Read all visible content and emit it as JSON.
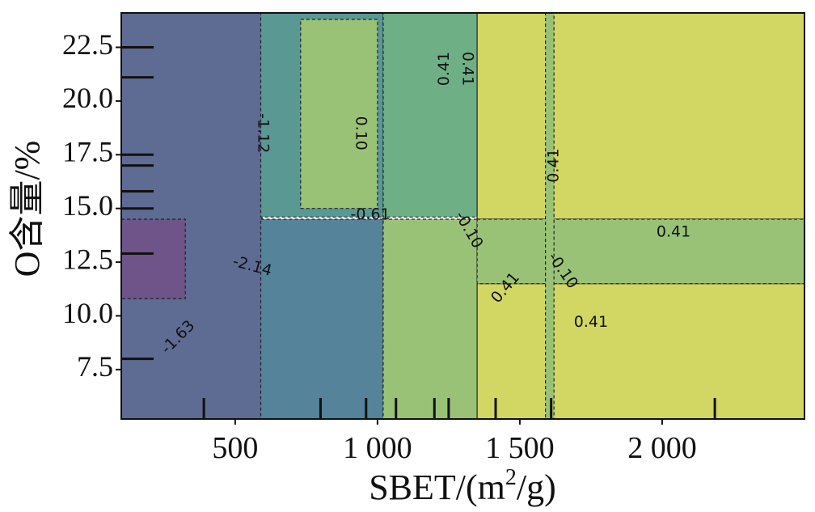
{
  "chart_data": {
    "type": "heatmap",
    "subtype": "filled-contour",
    "xlabel": "SBET/(m²/g)",
    "xlabel_base": "SBET/(m",
    "xlabel_sup": "2",
    "xlabel_tail": "/g)",
    "ylabel": "O含量/%",
    "xlim": [
      100,
      2500
    ],
    "ylim": [
      5.2,
      24.1
    ],
    "grid": false,
    "xticks": [
      {
        "value": 500,
        "label": "500"
      },
      {
        "value": 1000,
        "label": "1 000"
      },
      {
        "value": 1500,
        "label": "1 500"
      },
      {
        "value": 2000,
        "label": "2 000"
      }
    ],
    "yticks": [
      {
        "value": 7.5,
        "label": "7.5"
      },
      {
        "value": 10.0,
        "label": "10.0"
      },
      {
        "value": 12.5,
        "label": "12.5"
      },
      {
        "value": 15.0,
        "label": "15.0"
      },
      {
        "value": 17.5,
        "label": "17.5"
      },
      {
        "value": 20.0,
        "label": "20.0"
      },
      {
        "value": 22.5,
        "label": "22.5"
      }
    ],
    "level_colors": {
      "-2.14": "#6e5488",
      "-1.63": "#5e6b93",
      "-1.12": "#54839a",
      "-0.61": "#5a9894",
      "-0.10": "#6faf86",
      "0.10": "#99c276",
      "0.41": "#d2d663"
    },
    "regions": [
      {
        "x": [
          100,
          595
        ],
        "y": [
          5.2,
          24.1
        ],
        "level": "-1.63"
      },
      {
        "x": [
          100,
          325
        ],
        "y": [
          10.8,
          14.5
        ],
        "level": "-2.14"
      },
      {
        "x": [
          590,
          1020
        ],
        "y": [
          14.6,
          24.1
        ],
        "level": "-0.61"
      },
      {
        "x": [
          730,
          1000
        ],
        "y": [
          15.0,
          23.8
        ],
        "level": "0.10"
      },
      {
        "x": [
          590,
          1020
        ],
        "y": [
          5.2,
          14.5
        ],
        "level": "-1.12"
      },
      {
        "x": [
          1020,
          1350
        ],
        "y": [
          14.6,
          24.1
        ],
        "level": "-0.10"
      },
      {
        "x": [
          1020,
          1350
        ],
        "y": [
          5.2,
          14.5
        ],
        "level": "0.10"
      },
      {
        "x": [
          1350,
          2500
        ],
        "y": [
          14.5,
          24.1
        ],
        "level": "0.41"
      },
      {
        "x": [
          1350,
          2500
        ],
        "y": [
          5.2,
          11.5
        ],
        "level": "0.41"
      },
      {
        "x": [
          1350,
          2500
        ],
        "y": [
          11.5,
          14.5
        ],
        "level": "0.10"
      },
      {
        "x": [
          1590,
          1620
        ],
        "y": [
          5.2,
          24.1
        ],
        "level": "0.10"
      }
    ],
    "contour_labels": [
      {
        "text": "-1.12",
        "x": 597,
        "y": 18.5,
        "rotate": 90
      },
      {
        "text": "-0.61",
        "x": 975,
        "y": 14.7,
        "rotate": 0
      },
      {
        "text": "0.10",
        "x": 940,
        "y": 18.5,
        "rotate": 90
      },
      {
        "text": "0.41",
        "x": 1235,
        "y": 21.5,
        "rotate": -90
      },
      {
        "text": "0.41",
        "x": 1315,
        "y": 21.5,
        "rotate": 90
      },
      {
        "text": "0.41",
        "x": 1620,
        "y": 17.0,
        "rotate": -90
      },
      {
        "text": "-0.10",
        "x": 1320,
        "y": 14.0,
        "rotate": 60
      },
      {
        "text": "0.41",
        "x": 2040,
        "y": 13.9,
        "rotate": 0
      },
      {
        "text": "-2.14",
        "x": 560,
        "y": 12.3,
        "rotate": 15
      },
      {
        "text": "0.41",
        "x": 1450,
        "y": 11.3,
        "rotate": -50
      },
      {
        "text": "-0.10",
        "x": 1650,
        "y": 12.1,
        "rotate": 55
      },
      {
        "text": "0.41",
        "x": 1750,
        "y": 9.7,
        "rotate": 0
      },
      {
        "text": "-1.63",
        "x": 300,
        "y": 9.0,
        "rotate": -45
      }
    ],
    "rug_x": [
      390,
      800,
      960,
      1065,
      1200,
      1250,
      1415,
      1610,
      2185
    ],
    "rug_y": [
      8.0,
      12.9,
      15.0,
      15.8,
      17.0,
      17.5,
      21.1,
      22.5
    ]
  }
}
